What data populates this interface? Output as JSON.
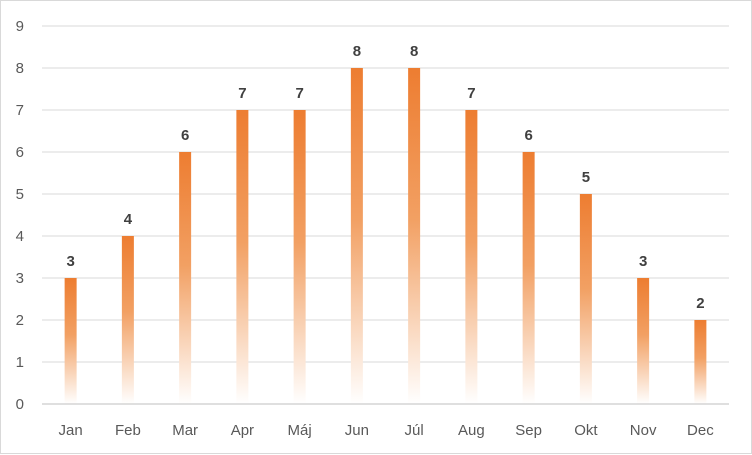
{
  "chart_data": {
    "type": "bar",
    "categories": [
      "Jan",
      "Feb",
      "Mar",
      "Apr",
      "Máj",
      "Jun",
      "Júl",
      "Aug",
      "Sep",
      "Okt",
      "Nov",
      "Dec"
    ],
    "values": [
      3,
      4,
      6,
      7,
      7,
      8,
      8,
      7,
      6,
      5,
      3,
      2
    ],
    "title": "",
    "xlabel": "",
    "ylabel": "",
    "ylim": [
      0,
      9
    ],
    "yticks": [
      0,
      1,
      2,
      3,
      4,
      5,
      6,
      7,
      8,
      9
    ],
    "grid": true,
    "legend": "none",
    "data_labels": true,
    "colors": {
      "bar_top": "#ED7D31",
      "bar_bottom": "#FFFFFF",
      "grid": "#D9D9D9",
      "axis": "#BFBFBF",
      "tick_text": "#595959",
      "label_text": "#404040"
    }
  }
}
